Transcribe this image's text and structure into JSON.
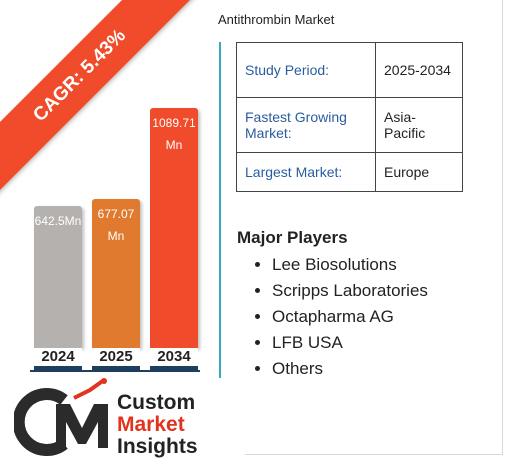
{
  "chart_data": {
    "type": "bar",
    "title": "Antithrombin Market",
    "categories": [
      "2024",
      "2025",
      "2034"
    ],
    "values": [
      642.5,
      677.07,
      1089.71
    ],
    "value_labels": [
      "642.5Mn",
      "677.07 Mn",
      "1089.71 Mn"
    ],
    "unit": "Mn",
    "bar_colors": [
      "#b5b1ae",
      "#e07a2e",
      "#f04b2a"
    ],
    "ylim": [
      0,
      1089.71
    ],
    "grid": false,
    "xlabel": "",
    "ylabel": ""
  },
  "ribbon": {
    "text": "CAGR: 5.43%",
    "color": "#f04b2a"
  },
  "info_table": [
    {
      "key": "Study Period:",
      "value": "2025-2034"
    },
    {
      "key": "Fastest Growing Market:",
      "value": "Asia-Pacific"
    },
    {
      "key": "Largest Market:",
      "value": "Europe"
    }
  ],
  "players": {
    "title": "Major Players",
    "items": [
      "Lee Biosolutions",
      "Scripps Laboratories",
      "Octapharma AG",
      "LFB USA",
      "Others"
    ]
  },
  "logo": {
    "line1": "Custom",
    "line2": "Market",
    "line3": "Insights",
    "accent_color": "#e2331e"
  }
}
